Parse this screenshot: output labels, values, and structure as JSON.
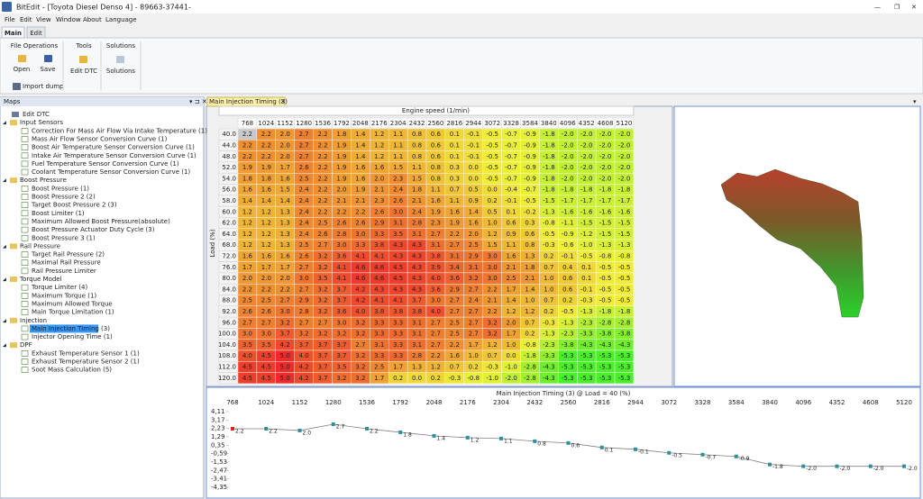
{
  "window": {
    "title": "BitEdit - [Toyota Diesel Denso 4] - 89663-37441-"
  },
  "menu": [
    "File",
    "Edit",
    "View",
    "Window",
    "About",
    "Language"
  ],
  "ribbon": {
    "tabs": [
      "Main",
      "Edit"
    ],
    "groups": [
      {
        "title": "File Operations",
        "items": [
          "Open",
          "Save",
          "Import dump"
        ]
      },
      {
        "title": "Tools",
        "items": [
          "Edit DTC"
        ]
      },
      {
        "title": "Solutions",
        "items": [
          "Solutions"
        ]
      }
    ]
  },
  "maps_panel": {
    "title": "Maps",
    "tree": [
      {
        "label": "Edit DTC"
      },
      {
        "label": "Input Sensors",
        "children": [
          "Correction For Mass Air Flow Via Intake Temperature (1)",
          "Mass Air Flow Sensor Conversion Curve (1)",
          "Boost Air Temperature Sensor Conversion Curve (1)",
          "Intake Air Temperature Sensor Conversion Curve (1)",
          "Fuel Temperature Sensor Conversion Curve (1)",
          "Coolant Temperature Sensor Conversion Curve (1)"
        ]
      },
      {
        "label": "Boost Pressure",
        "children": [
          "Boost Pressure (1)",
          "Boost Pressure 2 (2)",
          "Target Boost Pressure 2 (3)",
          "Boost Limiter (1)",
          "Maximum Allowed Boost Pressure(absolute)",
          "Boost Pressure Actuator Duty Cycle (3)",
          "Boost Pressure 3 (1)"
        ]
      },
      {
        "label": "Rail Pressure",
        "children": [
          "Target Rail Pressure (2)",
          "Maximal Rail Pressure",
          "Rail Pressure Limiter"
        ]
      },
      {
        "label": "Torque Model",
        "children": [
          "Torque Limiter (4)",
          "Maximum Torque (1)",
          "Maximum Allowed Torque",
          "Main Torque Limitation (1)"
        ]
      },
      {
        "label": "Injection",
        "children": [
          "Main Injection Timing (3)",
          "Injector Opening Time (1)"
        ]
      },
      {
        "label": "DPF",
        "children": [
          "Exhaust Temperature Sensor 1 (1)",
          "Exhaust Temperature Sensor 2 (1)",
          "Soot Mass Calculation (5)"
        ]
      }
    ]
  },
  "document": {
    "tab": "Main Injection Timing (3)",
    "table": {
      "x_axis_label": "Engine speed (1/min)",
      "y_axis_label": "Load (%)",
      "columns": [
        "768",
        "1024",
        "1152",
        "1280",
        "1536",
        "1792",
        "2048",
        "2176",
        "2304",
        "2432",
        "2560",
        "2816",
        "2944",
        "3072",
        "3328",
        "3584",
        "3840",
        "4096",
        "4352",
        "4608",
        "5120"
      ],
      "rows": [
        {
          "load": "40.0",
          "cells": [
            "2.2",
            "2.2",
            "2.0",
            "2.7",
            "2.2",
            "1.8",
            "1.4",
            "1.2",
            "1.1",
            "0.8",
            "0.6",
            "0.1",
            "-0.1",
            "-0.5",
            "-0.7",
            "-0.9",
            "-1.8",
            "-2.0",
            "-2.0",
            "-2.0",
            "-2.0"
          ]
        },
        {
          "load": "44.0",
          "cells": [
            "2.2",
            "2.2",
            "2.0",
            "2.7",
            "2.2",
            "1.9",
            "1.4",
            "1.2",
            "1.1",
            "0.8",
            "0.6",
            "0.1",
            "-0.1",
            "-0.5",
            "-0.7",
            "-0.9",
            "-1.8",
            "-2.0",
            "-2.0",
            "-2.0",
            "-2.0"
          ]
        },
        {
          "load": "48.0",
          "cells": [
            "2.2",
            "2.2",
            "2.0",
            "2.7",
            "2.2",
            "1.9",
            "1.4",
            "1.2",
            "1.1",
            "0.8",
            "0.6",
            "0.1",
            "-0.1",
            "-0.5",
            "-0.7",
            "-0.9",
            "-1.8",
            "-2.0",
            "-2.0",
            "-2.0",
            "-2.0"
          ]
        },
        {
          "load": "52.0",
          "cells": [
            "1.9",
            "1.9",
            "1.7",
            "2.6",
            "2.2",
            "1.9",
            "1.6",
            "1.6",
            "1.5",
            "1.1",
            "0.8",
            "0.3",
            "0.0",
            "-0.5",
            "-0.7",
            "-0.9",
            "-1.8",
            "-2.0",
            "-2.0",
            "-2.0",
            "-2.0"
          ]
        },
        {
          "load": "54.0",
          "cells": [
            "1.8",
            "1.8",
            "1.6",
            "2.5",
            "2.2",
            "1.9",
            "1.6",
            "2.0",
            "2.3",
            "1.5",
            "0.8",
            "0.3",
            "0.0",
            "-0.5",
            "-0.7",
            "-0.9",
            "-1.8",
            "-2.0",
            "-2.0",
            "-2.0",
            "-2.0"
          ]
        },
        {
          "load": "56.0",
          "cells": [
            "1.6",
            "1.6",
            "1.5",
            "2.4",
            "2.2",
            "2.0",
            "1.9",
            "2.1",
            "2.4",
            "1.8",
            "1.1",
            "0.7",
            "0.5",
            "0.0",
            "-0.4",
            "-0.7",
            "-1.8",
            "-1.8",
            "-1.8",
            "-1.8",
            "-1.8"
          ]
        },
        {
          "load": "58.0",
          "cells": [
            "1.4",
            "1.4",
            "1.4",
            "2.4",
            "2.2",
            "2.1",
            "2.1",
            "2.3",
            "2.6",
            "2.1",
            "1.6",
            "1.1",
            "0.9",
            "0.2",
            "-0.1",
            "-0.5",
            "-1.5",
            "-1.7",
            "-1.7",
            "-1.7",
            "-1.7"
          ]
        },
        {
          "load": "60.0",
          "cells": [
            "1.2",
            "1.2",
            "1.3",
            "2.4",
            "2.2",
            "2.2",
            "2.2",
            "2.6",
            "3.0",
            "2.4",
            "1.9",
            "1.6",
            "1.4",
            "0.5",
            "0.1",
            "-0.2",
            "-1.3",
            "-1.6",
            "-1.6",
            "-1.6",
            "-1.6"
          ]
        },
        {
          "load": "62.0",
          "cells": [
            "1.2",
            "1.2",
            "1.3",
            "2.4",
            "2.5",
            "2.6",
            "2.6",
            "2.9",
            "3.1",
            "2.8",
            "2.3",
            "1.9",
            "1.6",
            "1.0",
            "0.6",
            "0.3",
            "-0.8",
            "-1.1",
            "-1.5",
            "-1.5",
            "-1.5"
          ]
        },
        {
          "load": "64.0",
          "cells": [
            "1.2",
            "1.2",
            "1.3",
            "2.4",
            "2.6",
            "2.8",
            "3.0",
            "3.3",
            "3.5",
            "3.1",
            "2.7",
            "2.2",
            "2.0",
            "1.2",
            "0.9",
            "0.6",
            "-0.5",
            "-0.9",
            "-1.2",
            "-1.5",
            "-1.5"
          ]
        },
        {
          "load": "68.0",
          "cells": [
            "1.2",
            "1.2",
            "1.3",
            "2.5",
            "2.7",
            "3.0",
            "3.3",
            "3.8",
            "4.3",
            "4.3",
            "3.1",
            "2.7",
            "2.5",
            "1.5",
            "1.1",
            "0.8",
            "-0.3",
            "-0.6",
            "-1.0",
            "-1.3",
            "-1.3"
          ]
        },
        {
          "load": "72.0",
          "cells": [
            "1.6",
            "1.6",
            "1.6",
            "2.6",
            "3.2",
            "3.6",
            "4.1",
            "4.1",
            "4.3",
            "4.3",
            "3.8",
            "3.1",
            "2.9",
            "3.0",
            "1.6",
            "1.3",
            "0.2",
            "-0.1",
            "-0.5",
            "-0.8",
            "-0.8"
          ]
        },
        {
          "load": "76.0",
          "cells": [
            "1.7",
            "1.7",
            "1.7",
            "2.7",
            "3.2",
            "4.1",
            "4.6",
            "4.6",
            "4.5",
            "4.3",
            "3.9",
            "3.4",
            "3.1",
            "3.0",
            "2.1",
            "1.8",
            "0.7",
            "0.4",
            "0.1",
            "-0.5",
            "-0.5"
          ]
        },
        {
          "load": "80.0",
          "cells": [
            "2.0",
            "2.0",
            "2.0",
            "3.0",
            "3.5",
            "4.1",
            "4.6",
            "4.6",
            "4.5",
            "4.3",
            "4.0",
            "3.6",
            "3.2",
            "3.0",
            "2.5",
            "2.1",
            "1.0",
            "0.6",
            "0.1",
            "-0.5",
            "-0.5"
          ]
        },
        {
          "load": "84.0",
          "cells": [
            "2.2",
            "2.2",
            "2.2",
            "2.7",
            "3.2",
            "3.7",
            "4.2",
            "4.3",
            "4.3",
            "4.3",
            "3.6",
            "2.9",
            "2.7",
            "2.2",
            "1.7",
            "1.4",
            "1.0",
            "0.6",
            "-0.1",
            "-0.5",
            "-0.5"
          ]
        },
        {
          "load": "88.0",
          "cells": [
            "2.5",
            "2.5",
            "2.7",
            "2.9",
            "3.2",
            "3.7",
            "4.2",
            "4.1",
            "4.1",
            "3.7",
            "3.0",
            "2.7",
            "2.4",
            "2.1",
            "1.4",
            "1.0",
            "0.7",
            "0.2",
            "-0.3",
            "-0.5",
            "-0.5"
          ]
        },
        {
          "load": "92.0",
          "cells": [
            "2.6",
            "2.6",
            "3.0",
            "2.8",
            "3.2",
            "3.6",
            "4.0",
            "3.8",
            "3.8",
            "3.8",
            "4.0",
            "2.7",
            "2.7",
            "2.2",
            "1.2",
            "1.2",
            "0.2",
            "-0.5",
            "-1.3",
            "-1.8",
            "-1.8"
          ]
        },
        {
          "load": "96.0",
          "cells": [
            "2.7",
            "2.7",
            "3.2",
            "2.7",
            "2.7",
            "3.0",
            "3.2",
            "3.3",
            "3.3",
            "3.1",
            "2.7",
            "2.5",
            "2.7",
            "3.2",
            "2.0",
            "0.7",
            "-0.3",
            "-1.3",
            "-2.3",
            "-2.8",
            "-2.8"
          ]
        },
        {
          "load": "100.0",
          "cells": [
            "3.0",
            "3.0",
            "3.7",
            "3.2",
            "3.2",
            "3.2",
            "3.2",
            "3.3",
            "3.3",
            "3.1",
            "2.7",
            "2.5",
            "2.7",
            "3.2",
            "1.7",
            "0.2",
            "-1.3",
            "-2.3",
            "-3.3",
            "-3.8",
            "-3.8"
          ]
        },
        {
          "load": "104.0",
          "cells": [
            "3.5",
            "3.5",
            "4.2",
            "3.7",
            "3.7",
            "3.7",
            "2.7",
            "3.1",
            "3.3",
            "3.1",
            "2.7",
            "2.2",
            "1.7",
            "1.2",
            "1.0",
            "-0.8",
            "-2.3",
            "-3.8",
            "-4.3",
            "-4.3",
            "-4.3"
          ]
        },
        {
          "load": "108.0",
          "cells": [
            "4.0",
            "4.5",
            "5.0",
            "4.0",
            "3.7",
            "3.7",
            "3.2",
            "3.3",
            "3.3",
            "2.8",
            "2.2",
            "1.6",
            "1.0",
            "0.7",
            "0.0",
            "-1.8",
            "-3.3",
            "-5.3",
            "-5.3",
            "-5.3",
            "-5.3"
          ]
        },
        {
          "load": "112.0",
          "cells": [
            "4.5",
            "4.5",
            "5.0",
            "4.2",
            "3.7",
            "3.5",
            "3.2",
            "2.5",
            "1.7",
            "1.3",
            "1.2",
            "0.7",
            "0.2",
            "-0.3",
            "-1.0",
            "-2.8",
            "-4.3",
            "-5.3",
            "-5.3",
            "-5.3",
            "-5.3"
          ]
        },
        {
          "load": "120.0",
          "cells": [
            "4.5",
            "4.5",
            "5.0",
            "4.2",
            "3.7",
            "3.2",
            "3.2",
            "1.7",
            "0.2",
            "0.0",
            "0.2",
            "-0.3",
            "-0.8",
            "-1.0",
            "-2.0",
            "-2.8",
            "-4.3",
            "-5.3",
            "-5.3",
            "-5.3",
            "-5.3"
          ]
        }
      ]
    }
  },
  "chart_data": {
    "type": "line",
    "title": "Main Injection Timing (3) @ Load = 40 (%)",
    "categories": [
      "768",
      "1024",
      "1152",
      "1280",
      "1536",
      "1792",
      "2048",
      "2176",
      "2304",
      "2432",
      "2560",
      "2816",
      "2944",
      "3072",
      "3328",
      "3584",
      "3840",
      "4096",
      "4352",
      "4608",
      "5120"
    ],
    "values": [
      2.2,
      2.2,
      2.0,
      2.7,
      2.2,
      1.8,
      1.4,
      1.2,
      1.1,
      0.8,
      0.6,
      0.1,
      -0.1,
      -0.5,
      -0.7,
      -0.9,
      -1.8,
      -2.0,
      -2.0,
      -2.0,
      -2.0
    ],
    "value_labels": [
      "2.2",
      "2.2",
      "2.0",
      "2.7",
      "2.2",
      "1.8",
      "1.4",
      "1.2",
      "1.1",
      "0.8",
      "0.6",
      "0.1",
      "-0.1",
      "-0.5",
      "-0.7",
      "-0.9",
      "-1.8",
      "-2.0",
      "-2.0",
      "-2.0",
      "-2.0"
    ],
    "color": "#808080",
    "marker_color": "#2f8f9d",
    "ylim": [
      -4.35,
      4.11
    ],
    "yticks": [
      {
        "value": 4.11,
        "label": "4,11"
      },
      {
        "value": 3.17,
        "label": "3,17"
      },
      {
        "value": 2.23,
        "label": "2,23"
      },
      {
        "value": 1.29,
        "label": "1,29"
      },
      {
        "value": 0.35,
        "label": "0,35"
      },
      {
        "value": -0.59,
        "label": "-0,59"
      },
      {
        "value": -1.53,
        "label": "-1,53"
      },
      {
        "value": -2.47,
        "label": "-2,47"
      },
      {
        "value": -3.41,
        "label": "-3,41"
      },
      {
        "value": -4.35,
        "label": "-4,35"
      }
    ]
  }
}
